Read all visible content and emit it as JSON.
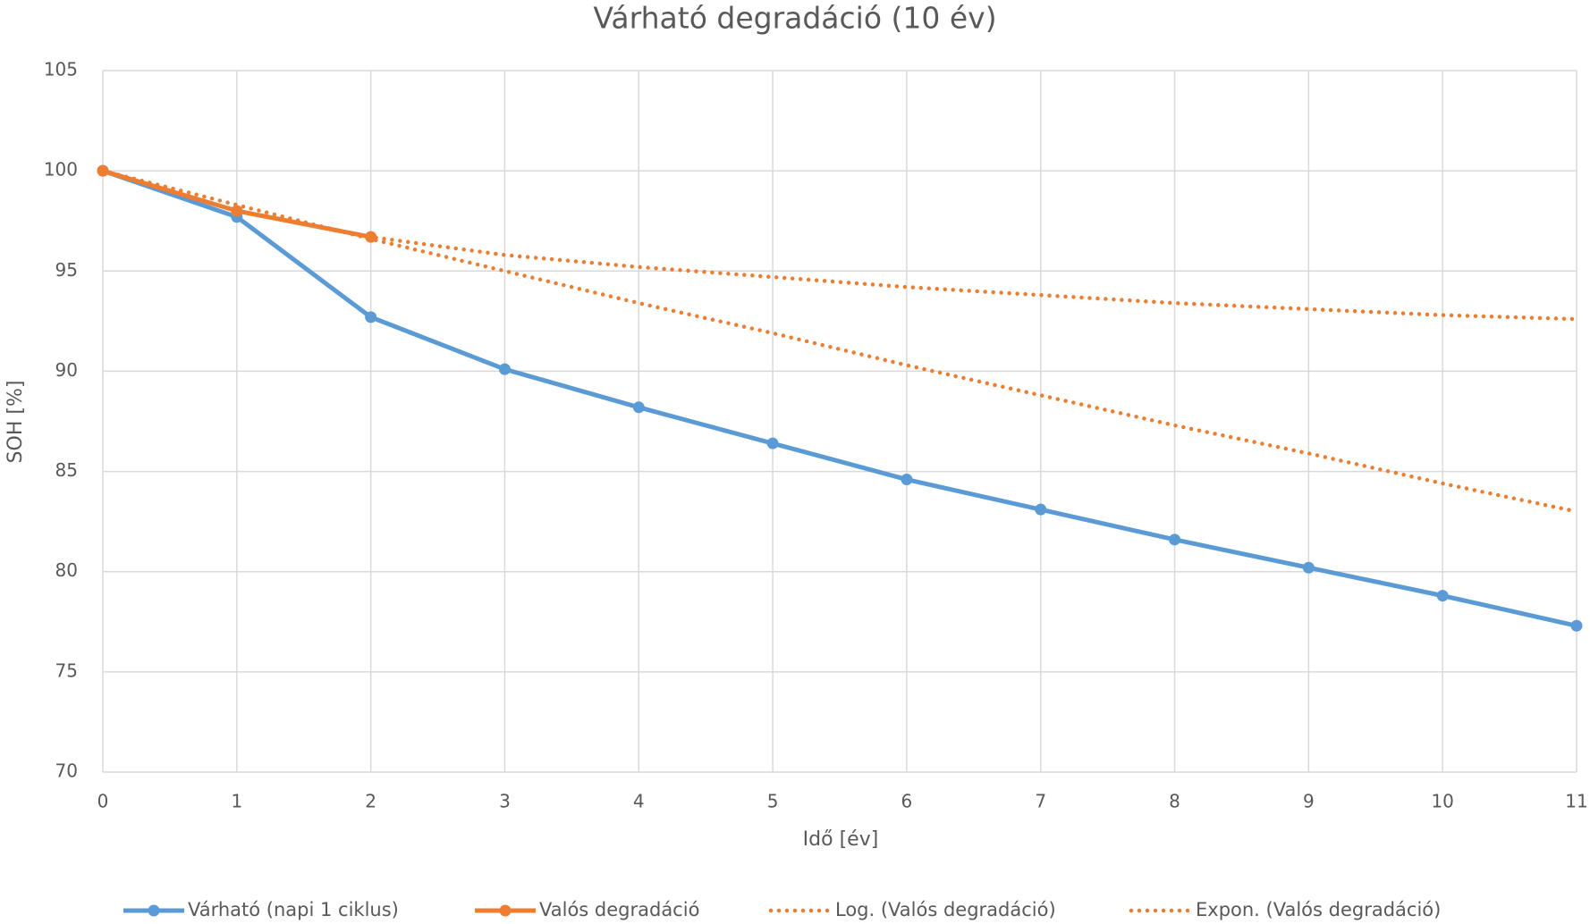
{
  "chart_data": {
    "type": "line",
    "title": "Várható degradáció (10 év)",
    "xlabel": "Idő [év]",
    "ylabel": "SOH [%]",
    "x": [
      0,
      1,
      2,
      3,
      4,
      5,
      6,
      7,
      8,
      9,
      10,
      11
    ],
    "xlim": [
      0,
      11
    ],
    "xticks": [
      0,
      1,
      2,
      3,
      4,
      5,
      6,
      7,
      8,
      9,
      10,
      11
    ],
    "ylim": [
      70,
      105
    ],
    "yticks": [
      70,
      75,
      80,
      85,
      90,
      95,
      100,
      105
    ],
    "grid": true,
    "legend": "bottom",
    "series": [
      {
        "name": "Várható (napi 1 ciklus)",
        "color": "#5b9bd5",
        "style": "solid",
        "marker": true,
        "values": [
          100,
          97.7,
          92.7,
          90.1,
          88.2,
          86.4,
          84.6,
          83.1,
          81.6,
          80.2,
          78.8,
          77.3
        ]
      },
      {
        "name": "Valós degradáció",
        "color": "#ed7d31",
        "style": "solid",
        "marker": true,
        "values": [
          100,
          98,
          96.7,
          null,
          null,
          null,
          null,
          null,
          null,
          null,
          null,
          null
        ]
      },
      {
        "name": "Log. (Valós degradáció)",
        "color": "#ed7d31",
        "style": "dotted",
        "marker": false,
        "values": [
          100,
          98,
          96.7,
          95.8,
          95.2,
          94.7,
          94.2,
          93.8,
          93.4,
          93.1,
          92.8,
          92.6
        ]
      },
      {
        "name": "Expon. (Valós degradáció)",
        "color": "#ed7d31",
        "style": "dotted",
        "marker": false,
        "values": [
          100,
          98.3,
          96.6,
          95.0,
          93.4,
          91.9,
          90.3,
          88.8,
          87.3,
          85.9,
          84.4,
          83.0
        ]
      }
    ]
  }
}
